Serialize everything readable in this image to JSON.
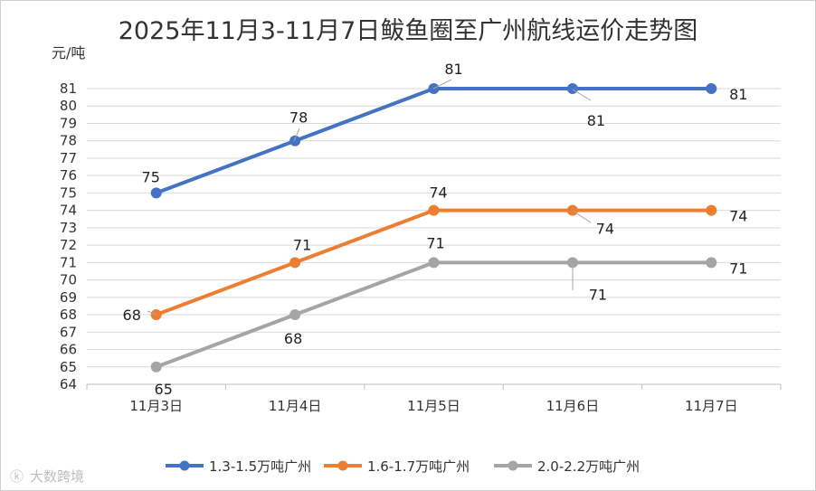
{
  "watermark": "大数跨境",
  "chart_data": {
    "type": "line",
    "title": "2025年11月3-11月7日鲅鱼圈至广州航线运价走势图",
    "ylabel": "元/吨",
    "xlabel": "",
    "categories": [
      "11月3日",
      "11月4日",
      "11月5日",
      "11月6日",
      "11月7日"
    ],
    "ylim": [
      64,
      81
    ],
    "yticks": [
      64,
      65,
      66,
      67,
      68,
      69,
      70,
      71,
      72,
      73,
      74,
      75,
      76,
      77,
      78,
      79,
      80,
      81
    ],
    "grid": true,
    "legend_position": "bottom",
    "series": [
      {
        "name": "1.3-1.5万吨广州",
        "color": "#4472C4",
        "values": [
          75,
          78,
          81,
          81,
          81
        ]
      },
      {
        "name": "1.6-1.7万吨广州",
        "color": "#ED7D31",
        "values": [
          68,
          71,
          74,
          74,
          74
        ]
      },
      {
        "name": "2.0-2.2万吨广州",
        "color": "#A5A5A5",
        "values": [
          65,
          68,
          71,
          71,
          71
        ]
      }
    ]
  }
}
